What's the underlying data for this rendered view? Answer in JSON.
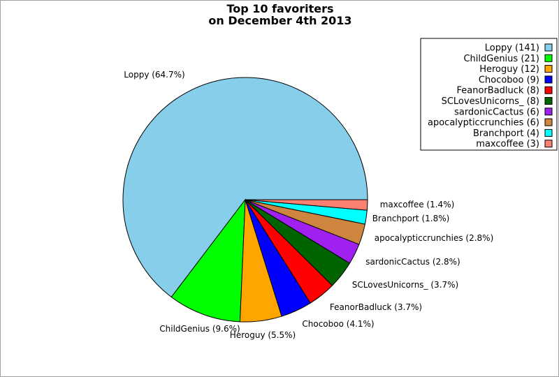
{
  "chart_data": {
    "type": "pie",
    "title": "Top 10 favoriters\non December 4th 2013",
    "legend_position": "top-right",
    "slices": [
      {
        "name": "Loppy",
        "count": 141,
        "percent": 64.7,
        "color": "#87ceeb",
        "legend": "Loppy (141)",
        "label": "Loppy (64.7%)"
      },
      {
        "name": "ChildGenius",
        "count": 21,
        "percent": 9.6,
        "color": "#00ff00",
        "legend": "ChildGenius (21)",
        "label": "ChildGenius (9.6%)"
      },
      {
        "name": "Heroguy",
        "count": 12,
        "percent": 5.5,
        "color": "#ffa500",
        "legend": "Heroguy (12)",
        "label": "Heroguy (5.5%)"
      },
      {
        "name": "Chocoboo",
        "count": 9,
        "percent": 4.1,
        "color": "#0000ff",
        "legend": "Chocoboo (9)",
        "label": "Chocoboo (4.1%)"
      },
      {
        "name": "FeanorBadluck",
        "count": 8,
        "percent": 3.7,
        "color": "#ff0000",
        "legend": "FeanorBadluck (8)",
        "label": "FeanorBadluck (3.7%)"
      },
      {
        "name": "SCLovesUnicorns_",
        "count": 8,
        "percent": 3.7,
        "color": "#006400",
        "legend": "SCLovesUnicorns_ (8)",
        "label": "SCLovesUnicorns_ (3.7%)"
      },
      {
        "name": "sardonicCactus",
        "count": 6,
        "percent": 2.8,
        "color": "#a020f0",
        "legend": "sardonicCactus (6)",
        "label": "sardonicCactus (2.8%)"
      },
      {
        "name": "apocalypticcrunchies",
        "count": 6,
        "percent": 2.8,
        "color": "#cd853f",
        "legend": "apocalypticcrunchies (6)",
        "label": "apocalypticcrunchies (2.8%)"
      },
      {
        "name": "Branchport",
        "count": 4,
        "percent": 1.8,
        "color": "#00ffff",
        "legend": "Branchport (4)",
        "label": "Branchport (1.8%)"
      },
      {
        "name": "maxcoffee",
        "count": 3,
        "percent": 1.4,
        "color": "#fa8072",
        "legend": "maxcoffee (3)",
        "label": "maxcoffee (1.4%)"
      }
    ]
  }
}
